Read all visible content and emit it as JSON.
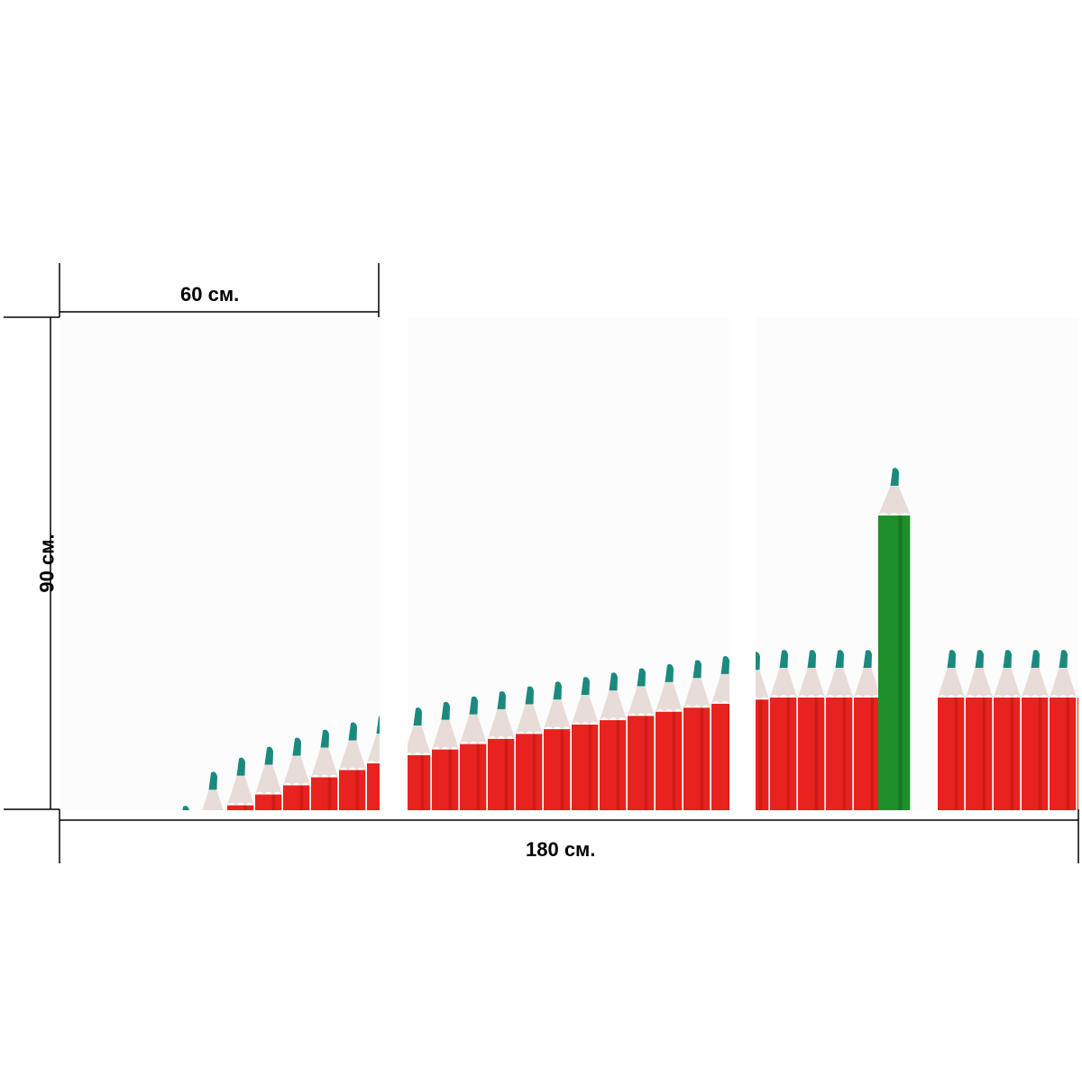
{
  "dimensions": {
    "panel_width_label": "60 см.",
    "height_label": "90 см.",
    "total_width_label": "180 см."
  },
  "panels": [
    {
      "name": "left-panel"
    },
    {
      "name": "middle-panel"
    },
    {
      "name": "right-panel"
    }
  ],
  "colors": {
    "background": "#ffffff",
    "pencil_red": "#e8221e",
    "pencil_dark_red": "#b3130f",
    "pencil_tip_wood": "#e8dcd8",
    "pencil_lead_teal": "#1a8a7e",
    "pencil_green": "#1e8f2a",
    "pencil_dark_green": "#0f5f1a",
    "dimension_line": "#000000"
  }
}
